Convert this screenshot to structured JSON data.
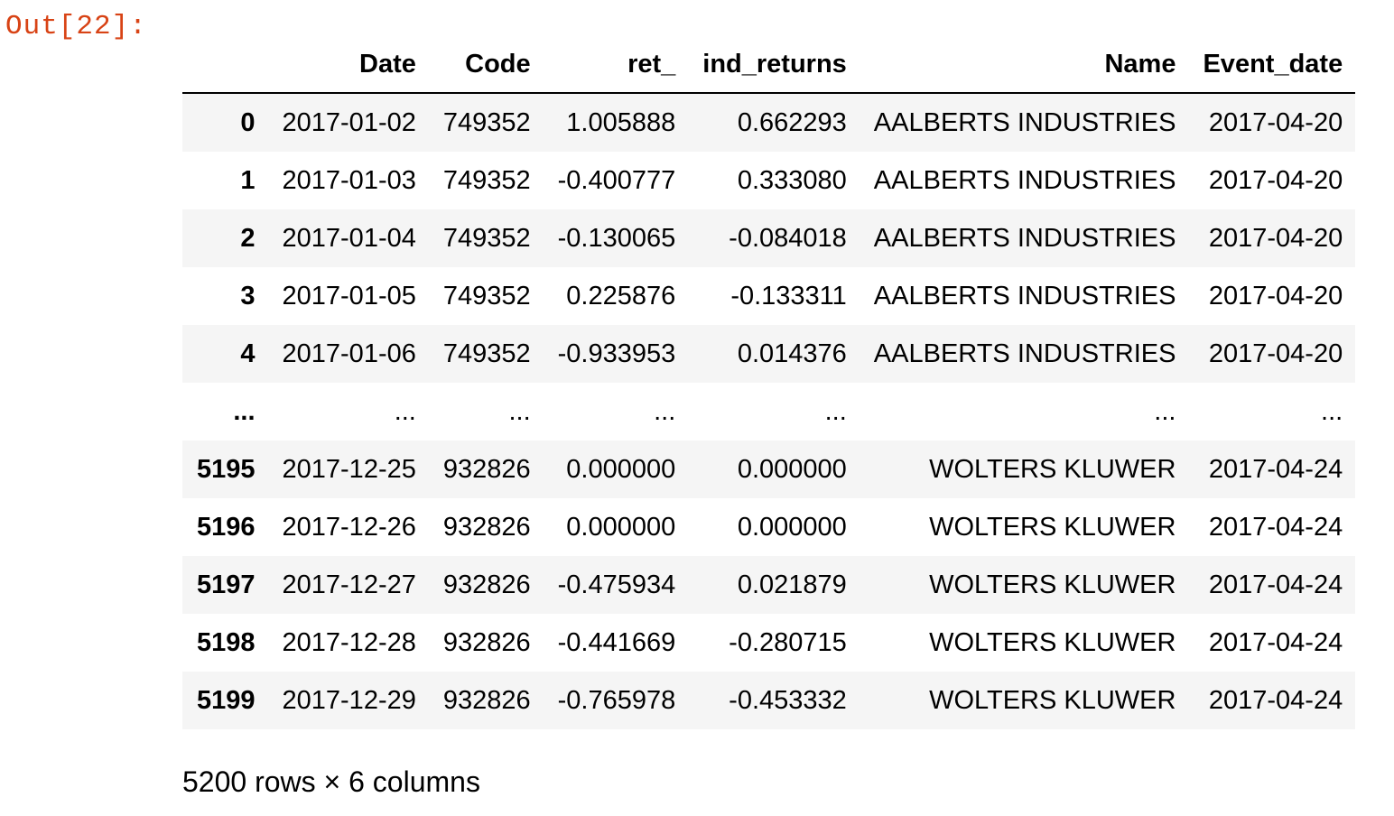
{
  "output_prompt": "Out[22]:",
  "columns": [
    "",
    "Date",
    "Code",
    "ret_",
    "ind_returns",
    "Name",
    "Event_date"
  ],
  "rows": [
    {
      "index": "0",
      "cells": [
        "2017-01-02",
        "749352",
        "1.005888",
        "0.662293",
        "AALBERTS INDUSTRIES",
        "2017-04-20"
      ]
    },
    {
      "index": "1",
      "cells": [
        "2017-01-03",
        "749352",
        "-0.400777",
        "0.333080",
        "AALBERTS INDUSTRIES",
        "2017-04-20"
      ]
    },
    {
      "index": "2",
      "cells": [
        "2017-01-04",
        "749352",
        "-0.130065",
        "-0.084018",
        "AALBERTS INDUSTRIES",
        "2017-04-20"
      ]
    },
    {
      "index": "3",
      "cells": [
        "2017-01-05",
        "749352",
        "0.225876",
        "-0.133311",
        "AALBERTS INDUSTRIES",
        "2017-04-20"
      ]
    },
    {
      "index": "4",
      "cells": [
        "2017-01-06",
        "749352",
        "-0.933953",
        "0.014376",
        "AALBERTS INDUSTRIES",
        "2017-04-20"
      ]
    },
    {
      "index": "...",
      "cells": [
        "...",
        "...",
        "...",
        "...",
        "...",
        "..."
      ]
    },
    {
      "index": "5195",
      "cells": [
        "2017-12-25",
        "932826",
        "0.000000",
        "0.000000",
        "WOLTERS KLUWER",
        "2017-04-24"
      ]
    },
    {
      "index": "5196",
      "cells": [
        "2017-12-26",
        "932826",
        "0.000000",
        "0.000000",
        "WOLTERS KLUWER",
        "2017-04-24"
      ]
    },
    {
      "index": "5197",
      "cells": [
        "2017-12-27",
        "932826",
        "-0.475934",
        "0.021879",
        "WOLTERS KLUWER",
        "2017-04-24"
      ]
    },
    {
      "index": "5198",
      "cells": [
        "2017-12-28",
        "932826",
        "-0.441669",
        "-0.280715",
        "WOLTERS KLUWER",
        "2017-04-24"
      ]
    },
    {
      "index": "5199",
      "cells": [
        "2017-12-29",
        "932826",
        "-0.765978",
        "-0.453332",
        "WOLTERS KLUWER",
        "2017-04-24"
      ]
    }
  ],
  "shape_text": "5200 rows × 6 columns",
  "colors": {
    "prompt": "#d84315",
    "stripe": "#f5f5f5"
  }
}
